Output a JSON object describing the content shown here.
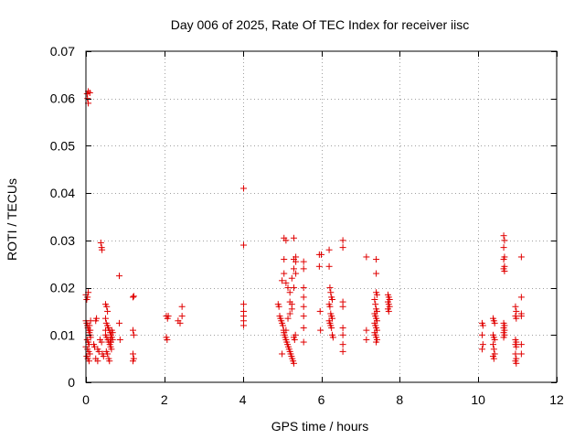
{
  "chart_data": {
    "type": "scatter",
    "title": "Day 006 of 2025, Rate Of TEC Index for receiver iisc",
    "xlabel": "GPS time / hours",
    "ylabel": "ROTI / TECUs",
    "xlim": [
      0,
      12
    ],
    "ylim": [
      0,
      0.07
    ],
    "xticks": [
      0,
      2,
      4,
      6,
      8,
      10,
      12
    ],
    "xtick_labels": [
      "0",
      "2",
      "4",
      "6",
      "8",
      "10",
      "12"
    ],
    "yticks": [
      0,
      0.01,
      0.02,
      0.03,
      0.04,
      0.05,
      0.06,
      0.07
    ],
    "ytick_labels": [
      "0",
      "0.01",
      "0.02",
      "0.03",
      "0.04",
      "0.05",
      "0.06",
      "0.07"
    ],
    "grid": true,
    "marker": "+",
    "color": "#e00000",
    "series": [
      {
        "name": "ROTI",
        "points": [
          [
            0.03,
            0.061
          ],
          [
            0.06,
            0.0615
          ],
          [
            0.1,
            0.0612
          ],
          [
            0.04,
            0.06
          ],
          [
            0.06,
            0.059
          ],
          [
            0.0,
            0.0185
          ],
          [
            0.04,
            0.018
          ],
          [
            0.06,
            0.019
          ],
          [
            0.02,
            0.0175
          ],
          [
            0.0,
            0.013
          ],
          [
            0.02,
            0.0125
          ],
          [
            0.04,
            0.012
          ],
          [
            0.05,
            0.0115
          ],
          [
            0.07,
            0.011
          ],
          [
            0.09,
            0.0105
          ],
          [
            0.1,
            0.01
          ],
          [
            0.12,
            0.0095
          ],
          [
            0.03,
            0.009
          ],
          [
            0.06,
            0.0085
          ],
          [
            0.08,
            0.008
          ],
          [
            0.0,
            0.0075
          ],
          [
            0.04,
            0.007
          ],
          [
            0.07,
            0.0065
          ],
          [
            0.1,
            0.006
          ],
          [
            0.02,
            0.0055
          ],
          [
            0.05,
            0.005
          ],
          [
            0.08,
            0.0045
          ],
          [
            0.12,
            0.013
          ],
          [
            0.09,
            0.012
          ],
          [
            0.11,
            0.011
          ],
          [
            0.2,
            0.008
          ],
          [
            0.22,
            0.0075
          ],
          [
            0.25,
            0.013
          ],
          [
            0.27,
            0.0135
          ],
          [
            0.3,
            0.007
          ],
          [
            0.33,
            0.0065
          ],
          [
            0.36,
            0.009
          ],
          [
            0.4,
            0.0085
          ],
          [
            0.42,
            0.006
          ],
          [
            0.45,
            0.0055
          ],
          [
            0.3,
            0.0045
          ],
          [
            0.25,
            0.005
          ],
          [
            0.38,
            0.0295
          ],
          [
            0.4,
            0.0285
          ],
          [
            0.41,
            0.028
          ],
          [
            0.5,
            0.0165
          ],
          [
            0.53,
            0.016
          ],
          [
            0.55,
            0.015
          ],
          [
            0.5,
            0.0135
          ],
          [
            0.52,
            0.0125
          ],
          [
            0.55,
            0.012
          ],
          [
            0.57,
            0.0115
          ],
          [
            0.6,
            0.011
          ],
          [
            0.62,
            0.0105
          ],
          [
            0.64,
            0.01
          ],
          [
            0.66,
            0.011
          ],
          [
            0.68,
            0.0105
          ],
          [
            0.5,
            0.01
          ],
          [
            0.53,
            0.0095
          ],
          [
            0.56,
            0.009
          ],
          [
            0.58,
            0.0085
          ],
          [
            0.61,
            0.008
          ],
          [
            0.63,
            0.0075
          ],
          [
            0.65,
            0.007
          ],
          [
            0.52,
            0.0065
          ],
          [
            0.55,
            0.006
          ],
          [
            0.58,
            0.005
          ],
          [
            0.6,
            0.0045
          ],
          [
            0.62,
            0.009
          ],
          [
            0.64,
            0.0085
          ],
          [
            0.66,
            0.0095
          ],
          [
            0.68,
            0.009
          ],
          [
            0.5,
            0.011
          ],
          [
            0.85,
            0.0225
          ],
          [
            0.85,
            0.0125
          ],
          [
            0.87,
            0.009
          ],
          [
            1.2,
            0.018
          ],
          [
            1.22,
            0.0182
          ],
          [
            1.2,
            0.011
          ],
          [
            1.22,
            0.01
          ],
          [
            1.2,
            0.006
          ],
          [
            1.22,
            0.005
          ],
          [
            1.2,
            0.0045
          ],
          [
            2.05,
            0.014
          ],
          [
            2.08,
            0.0135
          ],
          [
            2.1,
            0.014
          ],
          [
            2.05,
            0.0095
          ],
          [
            2.07,
            0.009
          ],
          [
            2.35,
            0.013
          ],
          [
            2.4,
            0.0125
          ],
          [
            2.45,
            0.016
          ],
          [
            2.45,
            0.014
          ],
          [
            4.02,
            0.041
          ],
          [
            4.02,
            0.029
          ],
          [
            4.02,
            0.0165
          ],
          [
            4.02,
            0.015
          ],
          [
            4.02,
            0.014
          ],
          [
            4.02,
            0.013
          ],
          [
            4.02,
            0.012
          ],
          [
            4.9,
            0.0165
          ],
          [
            4.92,
            0.016
          ],
          [
            4.94,
            0.014
          ],
          [
            4.96,
            0.0135
          ],
          [
            4.98,
            0.013
          ],
          [
            5.0,
            0.0125
          ],
          [
            5.02,
            0.012
          ],
          [
            5.04,
            0.011
          ],
          [
            5.06,
            0.01
          ],
          [
            5.08,
            0.0095
          ],
          [
            5.1,
            0.009
          ],
          [
            5.12,
            0.0085
          ],
          [
            5.14,
            0.008
          ],
          [
            5.16,
            0.0075
          ],
          [
            5.18,
            0.007
          ],
          [
            5.2,
            0.0065
          ],
          [
            5.22,
            0.006
          ],
          [
            5.24,
            0.0055
          ],
          [
            5.26,
            0.005
          ],
          [
            5.28,
            0.0045
          ],
          [
            5.3,
            0.004
          ],
          [
            5.0,
            0.006
          ],
          [
            5.05,
            0.0105
          ],
          [
            5.1,
            0.011
          ],
          [
            5.15,
            0.0135
          ],
          [
            5.2,
            0.0145
          ],
          [
            5.25,
            0.0155
          ],
          [
            5.3,
            0.02
          ],
          [
            5.0,
            0.0215
          ],
          [
            5.05,
            0.023
          ],
          [
            5.1,
            0.021
          ],
          [
            5.15,
            0.02
          ],
          [
            5.2,
            0.019
          ],
          [
            5.25,
            0.022
          ],
          [
            5.3,
            0.026
          ],
          [
            5.35,
            0.0255
          ],
          [
            5.05,
            0.0305
          ],
          [
            5.1,
            0.03
          ],
          [
            5.3,
            0.0305
          ],
          [
            5.35,
            0.0265
          ],
          [
            5.05,
            0.026
          ],
          [
            5.3,
            0.024
          ],
          [
            5.35,
            0.023
          ],
          [
            5.2,
            0.017
          ],
          [
            5.25,
            0.0165
          ],
          [
            5.3,
            0.0095
          ],
          [
            5.32,
            0.009
          ],
          [
            5.34,
            0.01
          ],
          [
            5.55,
            0.0255
          ],
          [
            5.55,
            0.024
          ],
          [
            5.55,
            0.02
          ],
          [
            5.55,
            0.018
          ],
          [
            5.55,
            0.016
          ],
          [
            5.55,
            0.014
          ],
          [
            5.55,
            0.0115
          ],
          [
            5.55,
            0.0085
          ],
          [
            5.95,
            0.027
          ],
          [
            6.0,
            0.027
          ],
          [
            5.95,
            0.0245
          ],
          [
            5.97,
            0.015
          ],
          [
            5.98,
            0.011
          ],
          [
            6.2,
            0.028
          ],
          [
            6.2,
            0.0245
          ],
          [
            6.22,
            0.02
          ],
          [
            6.24,
            0.019
          ],
          [
            6.26,
            0.018
          ],
          [
            6.28,
            0.0175
          ],
          [
            6.2,
            0.0165
          ],
          [
            6.22,
            0.016
          ],
          [
            6.24,
            0.0145
          ],
          [
            6.26,
            0.014
          ],
          [
            6.28,
            0.0135
          ],
          [
            6.2,
            0.013
          ],
          [
            6.22,
            0.0125
          ],
          [
            6.24,
            0.012
          ],
          [
            6.26,
            0.0115
          ],
          [
            6.28,
            0.01
          ],
          [
            6.3,
            0.0095
          ],
          [
            6.55,
            0.03
          ],
          [
            6.55,
            0.0285
          ],
          [
            6.55,
            0.017
          ],
          [
            6.55,
            0.016
          ],
          [
            6.55,
            0.0115
          ],
          [
            6.55,
            0.01
          ],
          [
            6.55,
            0.008
          ],
          [
            6.55,
            0.0065
          ],
          [
            7.15,
            0.0265
          ],
          [
            7.15,
            0.011
          ],
          [
            7.15,
            0.009
          ],
          [
            7.4,
            0.026
          ],
          [
            7.4,
            0.023
          ],
          [
            7.4,
            0.019
          ],
          [
            7.42,
            0.0185
          ],
          [
            7.36,
            0.0175
          ],
          [
            7.38,
            0.0165
          ],
          [
            7.4,
            0.0155
          ],
          [
            7.42,
            0.015
          ],
          [
            7.36,
            0.0145
          ],
          [
            7.38,
            0.014
          ],
          [
            7.4,
            0.0135
          ],
          [
            7.42,
            0.013
          ],
          [
            7.36,
            0.0125
          ],
          [
            7.38,
            0.012
          ],
          [
            7.4,
            0.0115
          ],
          [
            7.42,
            0.011
          ],
          [
            7.36,
            0.0105
          ],
          [
            7.38,
            0.01
          ],
          [
            7.4,
            0.0095
          ],
          [
            7.42,
            0.009
          ],
          [
            7.4,
            0.0085
          ],
          [
            7.7,
            0.0185
          ],
          [
            7.72,
            0.018
          ],
          [
            7.74,
            0.0175
          ],
          [
            7.7,
            0.017
          ],
          [
            7.72,
            0.0165
          ],
          [
            7.74,
            0.016
          ],
          [
            7.7,
            0.0155
          ],
          [
            7.72,
            0.015
          ],
          [
            10.1,
            0.0125
          ],
          [
            10.12,
            0.012
          ],
          [
            10.1,
            0.01
          ],
          [
            10.12,
            0.008
          ],
          [
            10.1,
            0.007
          ],
          [
            10.38,
            0.0135
          ],
          [
            10.4,
            0.013
          ],
          [
            10.42,
            0.0125
          ],
          [
            10.38,
            0.01
          ],
          [
            10.4,
            0.0095
          ],
          [
            10.42,
            0.009
          ],
          [
            10.38,
            0.008
          ],
          [
            10.4,
            0.007
          ],
          [
            10.42,
            0.006
          ],
          [
            10.38,
            0.0055
          ],
          [
            10.4,
            0.005
          ],
          [
            10.65,
            0.031
          ],
          [
            10.67,
            0.03
          ],
          [
            10.65,
            0.0285
          ],
          [
            10.67,
            0.0265
          ],
          [
            10.65,
            0.026
          ],
          [
            10.67,
            0.0245
          ],
          [
            10.65,
            0.024
          ],
          [
            10.67,
            0.0235
          ],
          [
            10.65,
            0.0125
          ],
          [
            10.67,
            0.012
          ],
          [
            10.65,
            0.0115
          ],
          [
            10.67,
            0.011
          ],
          [
            10.65,
            0.0105
          ],
          [
            10.67,
            0.01
          ],
          [
            10.65,
            0.0095
          ],
          [
            10.95,
            0.016
          ],
          [
            10.97,
            0.015
          ],
          [
            10.95,
            0.014
          ],
          [
            10.97,
            0.0135
          ],
          [
            10.95,
            0.009
          ],
          [
            10.97,
            0.0085
          ],
          [
            10.95,
            0.008
          ],
          [
            10.97,
            0.0075
          ],
          [
            10.95,
            0.006
          ],
          [
            10.97,
            0.005
          ],
          [
            10.95,
            0.0045
          ],
          [
            10.97,
            0.004
          ],
          [
            11.1,
            0.0265
          ],
          [
            11.1,
            0.018
          ],
          [
            11.1,
            0.0145
          ],
          [
            11.1,
            0.014
          ],
          [
            11.1,
            0.008
          ],
          [
            11.1,
            0.006
          ]
        ]
      }
    ]
  }
}
